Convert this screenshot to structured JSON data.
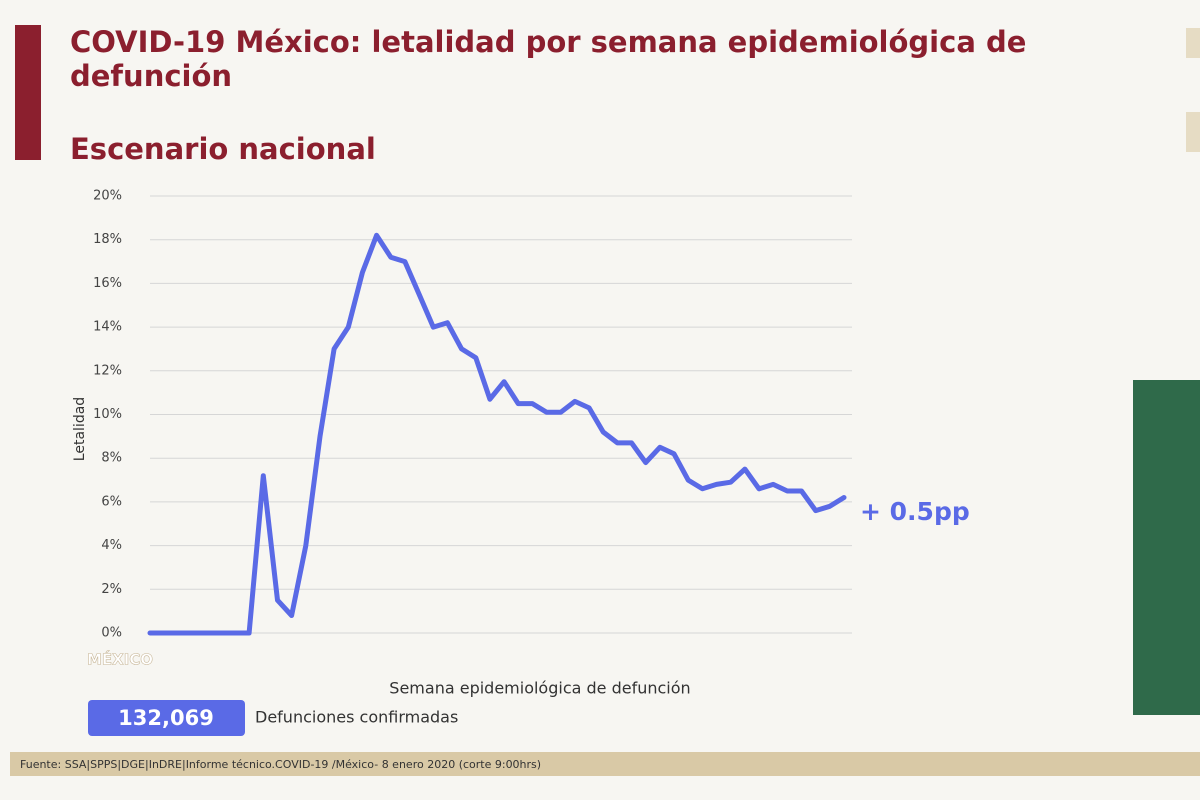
{
  "header": {
    "title_line1": "COVID-19 México: letalidad por semana epidemiológica de",
    "title_line2": "defunción",
    "subtitle": "Escenario nacional"
  },
  "chart_data": {
    "type": "line",
    "y_label": "Letalidad",
    "x_label": "Semana epidemiológica de defunción",
    "annotation": "+ 0.5pp",
    "x": [
      1,
      2,
      3,
      4,
      5,
      6,
      7,
      8,
      9,
      10,
      11,
      12,
      13,
      14,
      15,
      16,
      17,
      18,
      19,
      20,
      21,
      22,
      23,
      24,
      25,
      26,
      27,
      28,
      29,
      30,
      31,
      32,
      33,
      34,
      35,
      36,
      37,
      38,
      39,
      40,
      41,
      42,
      43,
      44,
      45,
      46,
      47,
      48,
      49,
      50
    ],
    "series": [
      {
        "name": "Letalidad",
        "color": "#5a6ae6",
        "values": [
          0,
          0,
          0,
          0,
          0,
          0,
          0,
          0,
          7.2,
          1.5,
          0.8,
          4,
          9,
          13,
          14,
          16.5,
          18.2,
          17.2,
          17,
          15.5,
          14,
          14.2,
          13,
          12.6,
          10.7,
          11.5,
          10.5,
          10.5,
          10.1,
          10.1,
          10.6,
          10.3,
          9.2,
          8.7,
          8.7,
          7.8,
          8.5,
          8.2,
          7,
          6.6,
          6.8,
          6.9,
          7.5,
          6.6,
          6.8,
          6.5,
          6.5,
          5.6,
          5.8,
          6.2
        ]
      }
    ],
    "xlim": [
      1,
      50
    ],
    "ylim": [
      0,
      20
    ],
    "yticks": [
      {
        "value": 0,
        "label": "0%"
      },
      {
        "value": 2,
        "label": "2%"
      },
      {
        "value": 4,
        "label": "4%"
      },
      {
        "value": 6,
        "label": "6%"
      },
      {
        "value": 8,
        "label": "8%"
      },
      {
        "value": 10,
        "label": "10%"
      },
      {
        "value": 12,
        "label": "12%"
      },
      {
        "value": 14,
        "label": "14%"
      },
      {
        "value": 16,
        "label": "16%"
      },
      {
        "value": 18,
        "label": "18%"
      },
      {
        "value": 20,
        "label": "20%"
      }
    ],
    "grid": true
  },
  "badge": {
    "number": "132,069",
    "text": "Defunciones confirmadas"
  },
  "logo_text": "MÉXICO",
  "footer": "Fuente: SSA|SPPS|DGE|InDRE|Informe técnico.COVID-19 /México- 8 enero 2020 (corte 9:00hrs)"
}
